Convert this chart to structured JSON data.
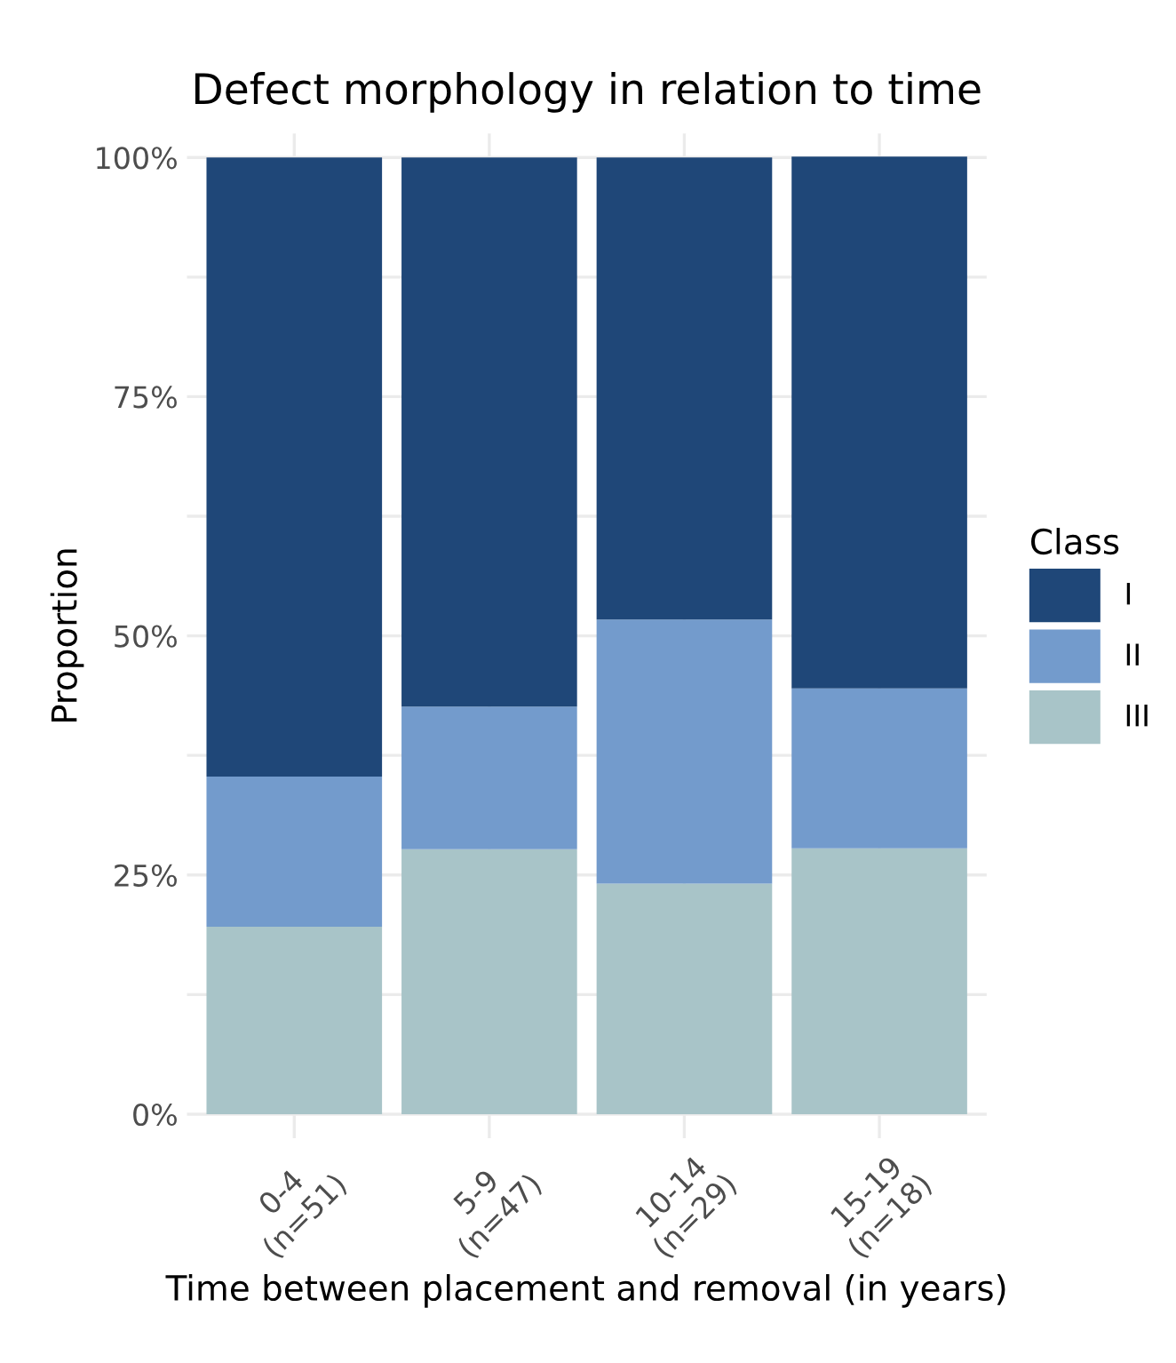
{
  "chart_data": {
    "type": "bar",
    "stacked": true,
    "title": "Defect morphology in relation to time",
    "xlabel": "Time between placement and removal (in years)",
    "ylabel": "Proportion",
    "legend_title": "Class",
    "categories": [
      "0-4\n(n=51)",
      "5-9\n(n=47)",
      "10-14\n(n=29)",
      "15-19\n(n=18)"
    ],
    "series": [
      {
        "name": "III",
        "color": "#a8c4c8",
        "values": [
          19.6,
          27.7,
          24.1,
          27.8
        ]
      },
      {
        "name": "II",
        "color": "#739bcc",
        "values": [
          15.7,
          14.9,
          27.6,
          16.7
        ]
      },
      {
        "name": "I",
        "color": "#1f4778",
        "values": [
          64.7,
          57.4,
          48.3,
          55.6
        ]
      }
    ],
    "ylim": [
      -2.5,
      102.5
    ],
    "yticks": [
      {
        "value": 0,
        "label": "0%"
      },
      {
        "value": 12.5,
        "label": null
      },
      {
        "value": 25,
        "label": "25%"
      },
      {
        "value": 37.5,
        "label": null
      },
      {
        "value": 50,
        "label": "50%"
      },
      {
        "value": 62.5,
        "label": null
      },
      {
        "value": 75,
        "label": "75%"
      },
      {
        "value": 87.5,
        "label": null
      },
      {
        "value": 100,
        "label": "100%"
      }
    ],
    "grid": true,
    "legend": "right"
  }
}
